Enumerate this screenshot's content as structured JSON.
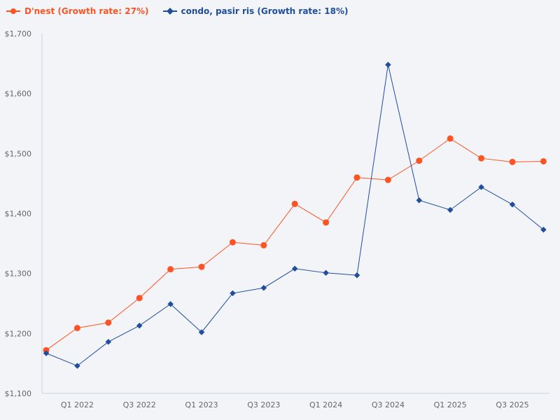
{
  "chart_data": {
    "type": "line",
    "x": [
      "Q4 2021",
      "Q1 2022",
      "Q2 2022",
      "Q3 2022",
      "Q4 2022",
      "Q1 2023",
      "Q2 2023",
      "Q3 2023",
      "Q4 2023",
      "Q1 2024",
      "Q2 2024",
      "Q3 2024",
      "Q4 2024",
      "Q1 2025",
      "Q2 2025",
      "Q3 2025",
      "Q4 2025"
    ],
    "x_tick_labels": [
      "Q1 2022",
      "Q3 2022",
      "Q1 2023",
      "Q3 2023",
      "Q1 2024",
      "Q3 2024",
      "Q1 2025",
      "Q3 2025"
    ],
    "y_tick_labels": [
      "$1,100",
      "$1,200",
      "$1,300",
      "$1,400",
      "$1,500",
      "$1,600",
      "$1,700"
    ],
    "ylim": [
      1100,
      1700
    ],
    "grid": false,
    "legend_position": "top-left",
    "series": [
      {
        "name": "D'nest (Growth rate: 27%)",
        "color": "#fc5424",
        "marker": "circle",
        "values": [
          1172,
          1209,
          1218,
          1259,
          1307,
          1311,
          1352,
          1347,
          1416,
          1385,
          1460,
          1456,
          1488,
          1525,
          1492,
          1486,
          1487
        ]
      },
      {
        "name": "condo, pasir ris (Growth rate: 18%)",
        "color": "#1f4e9e",
        "marker": "diamond",
        "values": [
          1167,
          1146,
          1186,
          1213,
          1249,
          1202,
          1267,
          1276,
          1308,
          1301,
          1297,
          1648,
          1422,
          1406,
          1444,
          1415,
          1373
        ]
      }
    ]
  }
}
